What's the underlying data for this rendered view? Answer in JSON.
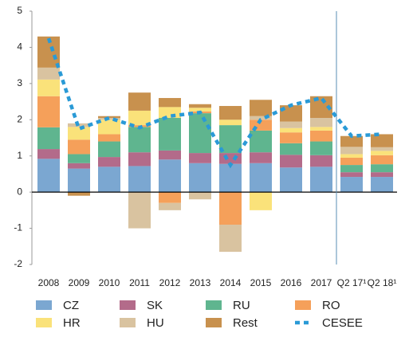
{
  "chart_data": {
    "type": "stacked_bar_line",
    "categories": [
      "2008",
      "2009",
      "2010",
      "2011",
      "2012",
      "2013",
      "2014",
      "2015",
      "2016",
      "2017",
      "Q2 17¹",
      "Q2 18¹"
    ],
    "series": [
      {
        "name": "CZ",
        "color": "#7ba7d1",
        "values": [
          0.92,
          0.65,
          0.7,
          0.72,
          0.9,
          0.8,
          0.78,
          0.8,
          0.68,
          0.7,
          0.42,
          0.42
        ]
      },
      {
        "name": "SK",
        "color": "#b36b8a",
        "values": [
          0.27,
          0.15,
          0.27,
          0.38,
          0.25,
          0.28,
          0.3,
          0.3,
          0.35,
          0.32,
          0.13,
          0.13
        ]
      },
      {
        "name": "RU",
        "color": "#5fb58f",
        "values": [
          0.6,
          0.25,
          0.43,
          0.7,
          0.9,
          1.1,
          0.77,
          0.6,
          0.32,
          0.38,
          0.2,
          0.22
        ]
      },
      {
        "name": "RO",
        "color": "#f5a05a",
        "values": [
          0.86,
          0.4,
          0.2,
          0.05,
          -0.3,
          0.05,
          -0.9,
          0.3,
          0.3,
          0.3,
          0.2,
          0.25
        ]
      },
      {
        "name": "HR",
        "color": "#fae27a",
        "values": [
          0.46,
          0.35,
          0.4,
          0.4,
          0.3,
          0.1,
          0.15,
          -0.5,
          0.12,
          0.1,
          0.1,
          0.12
        ]
      },
      {
        "name": "HU",
        "color": "#d9c3a0",
        "values": [
          0.33,
          0.1,
          0.05,
          -1.0,
          -0.2,
          -0.2,
          -0.75,
          0.1,
          0.18,
          0.25,
          0.2,
          0.1
        ]
      },
      {
        "name": "Rest",
        "color": "#c8914e",
        "values": [
          0.86,
          -0.1,
          0.05,
          0.5,
          0.25,
          0.1,
          0.38,
          0.45,
          0.45,
          0.6,
          0.3,
          0.36
        ]
      },
      {
        "name": "CESEE",
        "color": "#2a9ad6",
        "type": "line",
        "values": [
          4.25,
          1.75,
          2.05,
          1.78,
          2.1,
          2.2,
          0.75,
          2.0,
          2.4,
          2.6,
          1.55,
          1.6
        ]
      }
    ],
    "ylim": [
      -2,
      5
    ],
    "yticks": [
      -2,
      -1,
      0,
      1,
      2,
      3,
      4,
      5
    ]
  }
}
